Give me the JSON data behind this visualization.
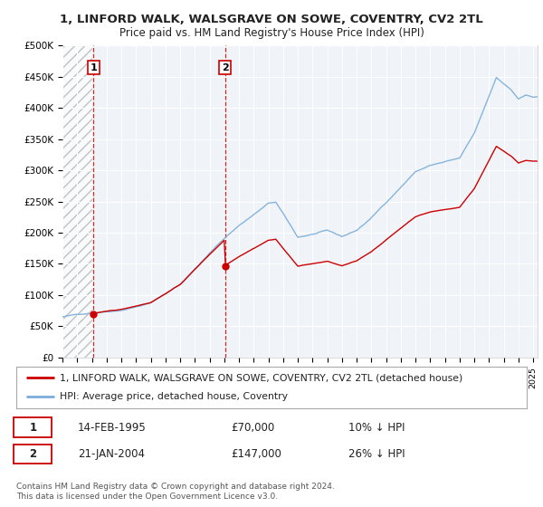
{
  "title": "1, LINFORD WALK, WALSGRAVE ON SOWE, COVENTRY, CV2 2TL",
  "subtitle": "Price paid vs. HM Land Registry's House Price Index (HPI)",
  "legend_line1": "1, LINFORD WALK, WALSGRAVE ON SOWE, COVENTRY, CV2 2TL (detached house)",
  "legend_line2": "HPI: Average price, detached house, Coventry",
  "footer": "Contains HM Land Registry data © Crown copyright and database right 2024.\nThis data is licensed under the Open Government Licence v3.0.",
  "sale1_label": "1",
  "sale1_date": "14-FEB-1995",
  "sale1_price": "£70,000",
  "sale1_hpi": "10% ↓ HPI",
  "sale1_year": 1995.12,
  "sale1_value": 70000,
  "sale2_label": "2",
  "sale2_date": "21-JAN-2004",
  "sale2_price": "£147,000",
  "sale2_hpi": "26% ↓ HPI",
  "sale2_year": 2004.05,
  "sale2_value": 147000,
  "hpi_color": "#7aaddb",
  "price_color": "#cc0000",
  "bg_color": "#f0f4f8",
  "ylim": [
    0,
    500000
  ],
  "yticks": [
    0,
    50000,
    100000,
    150000,
    200000,
    250000,
    300000,
    350000,
    400000,
    450000,
    500000
  ],
  "ylabel_fmt": [
    "£0",
    "£50K",
    "£100K",
    "£150K",
    "£200K",
    "£250K",
    "£300K",
    "£350K",
    "£400K",
    "£450K",
    "£500K"
  ]
}
